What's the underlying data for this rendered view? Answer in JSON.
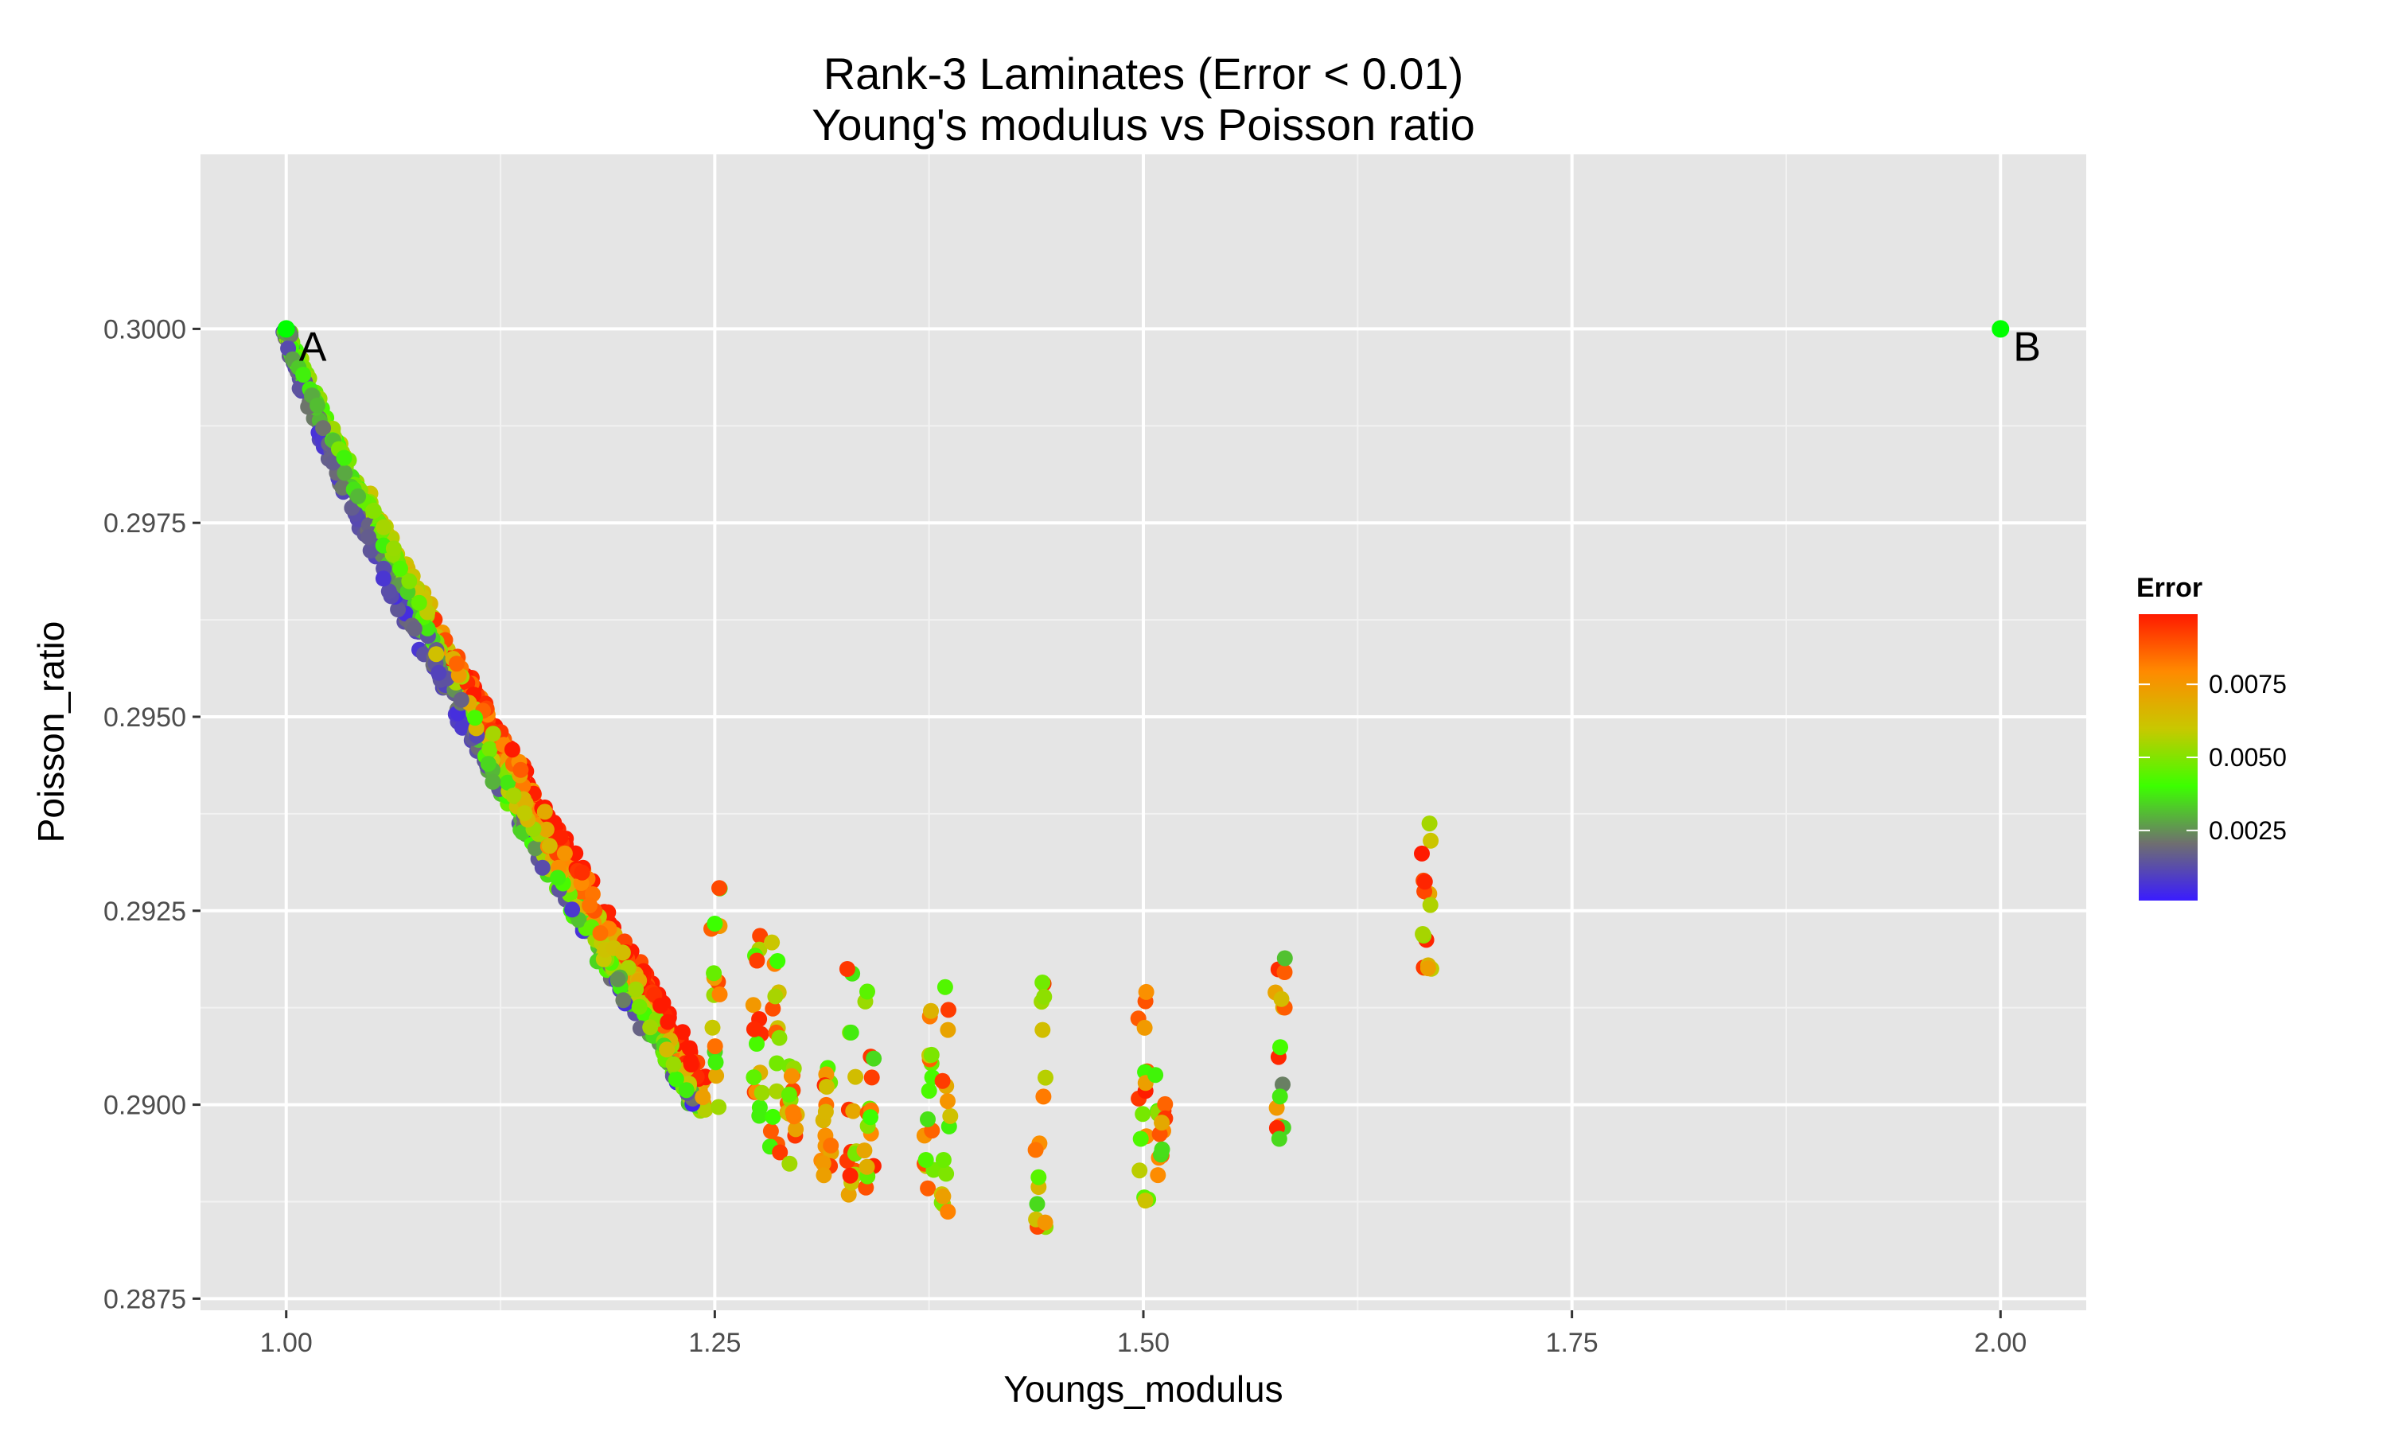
{
  "chart_data": {
    "type": "scatter",
    "title": "Rank-3 Laminates (Error < 0.01)",
    "subtitle": "Young's modulus vs Poisson ratio",
    "xlabel": "Youngs_modulus",
    "ylabel": "Poisson_ratio",
    "xlim": [
      0.95,
      2.05
    ],
    "ylim": [
      0.28735,
      0.30225
    ],
    "x_ticks": [
      1.0,
      1.25,
      1.5,
      1.75,
      2.0
    ],
    "x_tick_labels": [
      "1.00",
      "1.25",
      "1.50",
      "1.75",
      "2.00"
    ],
    "y_ticks": [
      0.2875,
      0.29,
      0.2925,
      0.295,
      0.2975,
      0.3
    ],
    "y_tick_labels": [
      "0.2875",
      "0.2900",
      "0.2925",
      "0.2950",
      "0.2975",
      "0.3000"
    ],
    "grid": true,
    "background": "#e5e5e5",
    "legend": {
      "title": "Error",
      "position": "right",
      "type": "colorbar",
      "range": [
        0.0001,
        0.0099
      ],
      "ticks": [
        0.0025,
        0.005,
        0.0075
      ],
      "tick_labels": [
        "0.0025",
        "0.0050",
        "0.0075"
      ],
      "colors": [
        "#3a1cff",
        "#6f6f6f",
        "#3cff00",
        "#c8c800",
        "#ff8a00",
        "#ff1a00"
      ]
    },
    "labeled_points": [
      {
        "label": "A",
        "x": 1.0,
        "y": 0.3,
        "color": "#00ff00"
      },
      {
        "label": "B",
        "x": 2.0,
        "y": 0.3,
        "color": "#00ff00"
      }
    ],
    "clusters": [
      {
        "x": 1.25,
        "ymin": 0.2899,
        "ymax": 0.2928,
        "emin": 0.0035,
        "emax": 0.0099
      },
      {
        "x": 1.275,
        "ymin": 0.2895,
        "ymax": 0.2922,
        "emin": 0.0035,
        "emax": 0.0099
      },
      {
        "x": 1.285,
        "ymin": 0.2893,
        "ymax": 0.2924,
        "emin": 0.0035,
        "emax": 0.0099
      },
      {
        "x": 1.295,
        "ymin": 0.2892,
        "ymax": 0.2905,
        "emin": 0.0035,
        "emax": 0.0099
      },
      {
        "x": 1.315,
        "ymin": 0.289,
        "ymax": 0.2905,
        "emin": 0.004,
        "emax": 0.0099
      },
      {
        "x": 1.33,
        "ymin": 0.2888,
        "ymax": 0.2919,
        "emin": 0.0035,
        "emax": 0.0099
      },
      {
        "x": 1.34,
        "ymin": 0.2887,
        "ymax": 0.2918,
        "emin": 0.0035,
        "emax": 0.0099
      },
      {
        "x": 1.375,
        "ymin": 0.2885,
        "ymax": 0.2916,
        "emin": 0.0035,
        "emax": 0.0099
      },
      {
        "x": 1.385,
        "ymin": 0.2884,
        "ymax": 0.2916,
        "emin": 0.0035,
        "emax": 0.0099
      },
      {
        "x": 1.44,
        "ymin": 0.2884,
        "ymax": 0.2916,
        "emin": 0.0035,
        "emax": 0.0099
      },
      {
        "x": 1.5,
        "ymin": 0.2887,
        "ymax": 0.2916,
        "emin": 0.0035,
        "emax": 0.0099
      },
      {
        "x": 1.51,
        "ymin": 0.2888,
        "ymax": 0.2905,
        "emin": 0.0035,
        "emax": 0.0099
      },
      {
        "x": 1.58,
        "ymin": 0.2895,
        "ymax": 0.2922,
        "emin": 0.002,
        "emax": 0.0099
      },
      {
        "x": 1.665,
        "ymin": 0.2917,
        "ymax": 0.2938,
        "emin": 0.005,
        "emax": 0.0099
      }
    ]
  }
}
